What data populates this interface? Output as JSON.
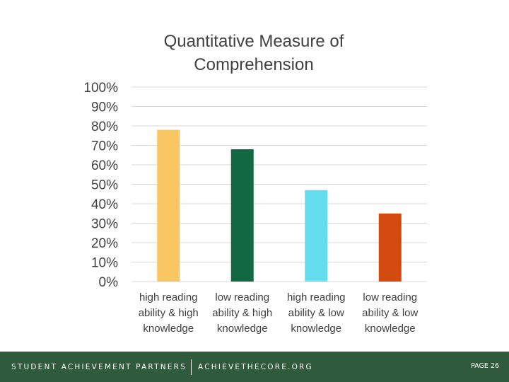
{
  "chart_data": {
    "type": "bar",
    "title_lines": [
      "Quantitative Measure of",
      "Comprehension"
    ],
    "categories": [
      [
        "high reading",
        "ability & high",
        "knowledge"
      ],
      [
        "low reading",
        "ability & high",
        "knowledge"
      ],
      [
        "high reading",
        "ability & low",
        "knowledge"
      ],
      [
        "low reading",
        "ability &  low",
        "knowledge"
      ]
    ],
    "values": [
      78,
      68,
      47,
      35
    ],
    "colors": [
      "#f8c663",
      "#116843",
      "#63dced",
      "#d24a0d"
    ],
    "ylim": [
      0,
      100
    ],
    "yticks": [
      "0%",
      "10%",
      "20%",
      "30%",
      "40%",
      "50%",
      "60%",
      "70%",
      "80%",
      "90%",
      "100%"
    ],
    "grid": true,
    "legend": "none"
  },
  "footer": {
    "org_name": "STUDENT ACHIEVEMENT PARTNERS",
    "website": "ACHIEVETHECORE.ORG",
    "page_label": "PAGE 26"
  }
}
